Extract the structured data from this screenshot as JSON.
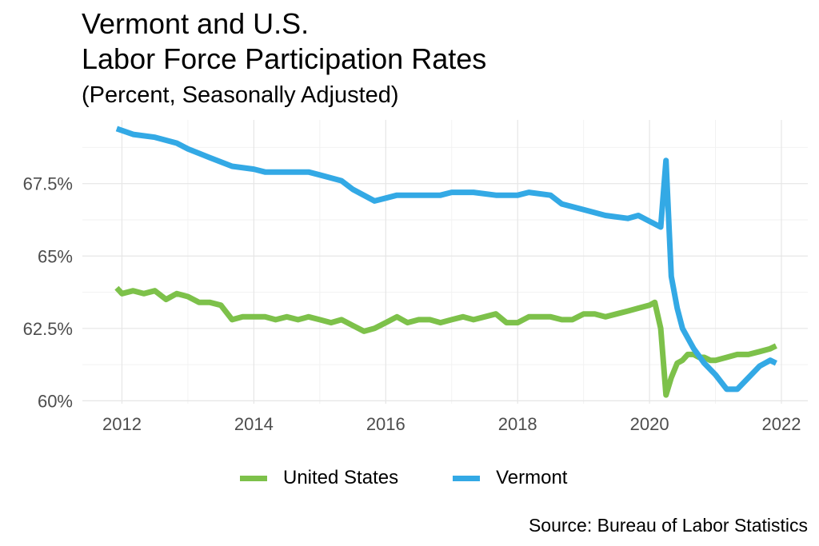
{
  "title_line1": "Vermont and U.S.",
  "title_line2": "Labor Force Participation Rates",
  "subtitle": "(Percent, Seasonally Adjusted)",
  "source": "Source: Bureau of Labor Statistics",
  "chart_data": {
    "type": "line",
    "title": "Vermont and U.S. Labor Force Participation Rates",
    "subtitle": "(Percent, Seasonally Adjusted)",
    "xlabel": "",
    "ylabel": "",
    "xlim": [
      2011.4,
      2022.4
    ],
    "ylim": [
      59.9,
      69.7
    ],
    "x_ticks": [
      2012,
      2014,
      2016,
      2018,
      2020,
      2022
    ],
    "x_tick_labels": [
      "2012",
      "2014",
      "2016",
      "2018",
      "2020",
      "2022"
    ],
    "y_ticks": [
      60,
      62.5,
      65,
      67.5
    ],
    "y_tick_labels": [
      "60%",
      "62.5%",
      "65%",
      "67.5%"
    ],
    "grid": true,
    "legend_position": "bottom",
    "series": [
      {
        "name": "United States",
        "color": "#7dc14a",
        "points": [
          [
            2011.92,
            63.9
          ],
          [
            2012.0,
            63.7
          ],
          [
            2012.17,
            63.8
          ],
          [
            2012.33,
            63.7
          ],
          [
            2012.5,
            63.8
          ],
          [
            2012.67,
            63.5
          ],
          [
            2012.83,
            63.7
          ],
          [
            2013.0,
            63.6
          ],
          [
            2013.17,
            63.4
          ],
          [
            2013.33,
            63.4
          ],
          [
            2013.5,
            63.3
          ],
          [
            2013.67,
            62.8
          ],
          [
            2013.83,
            62.9
          ],
          [
            2014.0,
            62.9
          ],
          [
            2014.17,
            62.9
          ],
          [
            2014.33,
            62.8
          ],
          [
            2014.5,
            62.9
          ],
          [
            2014.67,
            62.8
          ],
          [
            2014.83,
            62.9
          ],
          [
            2015.0,
            62.8
          ],
          [
            2015.17,
            62.7
          ],
          [
            2015.33,
            62.8
          ],
          [
            2015.5,
            62.6
          ],
          [
            2015.67,
            62.4
          ],
          [
            2015.83,
            62.5
          ],
          [
            2016.0,
            62.7
          ],
          [
            2016.17,
            62.9
          ],
          [
            2016.33,
            62.7
          ],
          [
            2016.5,
            62.8
          ],
          [
            2016.67,
            62.8
          ],
          [
            2016.83,
            62.7
          ],
          [
            2017.0,
            62.8
          ],
          [
            2017.17,
            62.9
          ],
          [
            2017.33,
            62.8
          ],
          [
            2017.5,
            62.9
          ],
          [
            2017.67,
            63.0
          ],
          [
            2017.83,
            62.7
          ],
          [
            2018.0,
            62.7
          ],
          [
            2018.17,
            62.9
          ],
          [
            2018.33,
            62.9
          ],
          [
            2018.5,
            62.9
          ],
          [
            2018.67,
            62.8
          ],
          [
            2018.83,
            62.8
          ],
          [
            2019.0,
            63.0
          ],
          [
            2019.17,
            63.0
          ],
          [
            2019.33,
            62.9
          ],
          [
            2019.5,
            63.0
          ],
          [
            2019.67,
            63.1
          ],
          [
            2019.83,
            63.2
          ],
          [
            2020.0,
            63.3
          ],
          [
            2020.08,
            63.4
          ],
          [
            2020.17,
            62.5
          ],
          [
            2020.25,
            60.2
          ],
          [
            2020.33,
            60.8
          ],
          [
            2020.42,
            61.3
          ],
          [
            2020.5,
            61.4
          ],
          [
            2020.58,
            61.6
          ],
          [
            2020.67,
            61.6
          ],
          [
            2020.75,
            61.5
          ],
          [
            2020.83,
            61.5
          ],
          [
            2020.92,
            61.4
          ],
          [
            2021.0,
            61.4
          ],
          [
            2021.17,
            61.5
          ],
          [
            2021.33,
            61.6
          ],
          [
            2021.5,
            61.6
          ],
          [
            2021.67,
            61.7
          ],
          [
            2021.83,
            61.8
          ],
          [
            2021.92,
            61.9
          ]
        ]
      },
      {
        "name": "Vermont",
        "color": "#33a9e5",
        "points": [
          [
            2011.92,
            69.4
          ],
          [
            2012.17,
            69.2
          ],
          [
            2012.5,
            69.1
          ],
          [
            2012.83,
            68.9
          ],
          [
            2013.0,
            68.7
          ],
          [
            2013.33,
            68.4
          ],
          [
            2013.67,
            68.1
          ],
          [
            2014.0,
            68.0
          ],
          [
            2014.17,
            67.9
          ],
          [
            2014.5,
            67.9
          ],
          [
            2014.83,
            67.9
          ],
          [
            2015.0,
            67.8
          ],
          [
            2015.33,
            67.6
          ],
          [
            2015.5,
            67.3
          ],
          [
            2015.83,
            66.9
          ],
          [
            2016.0,
            67.0
          ],
          [
            2016.17,
            67.1
          ],
          [
            2016.5,
            67.1
          ],
          [
            2016.83,
            67.1
          ],
          [
            2017.0,
            67.2
          ],
          [
            2017.33,
            67.2
          ],
          [
            2017.67,
            67.1
          ],
          [
            2018.0,
            67.1
          ],
          [
            2018.17,
            67.2
          ],
          [
            2018.5,
            67.1
          ],
          [
            2018.67,
            66.8
          ],
          [
            2019.0,
            66.6
          ],
          [
            2019.33,
            66.4
          ],
          [
            2019.67,
            66.3
          ],
          [
            2019.83,
            66.4
          ],
          [
            2020.0,
            66.2
          ],
          [
            2020.17,
            66.0
          ],
          [
            2020.25,
            68.3
          ],
          [
            2020.33,
            64.3
          ],
          [
            2020.42,
            63.2
          ],
          [
            2020.5,
            62.5
          ],
          [
            2020.67,
            61.8
          ],
          [
            2020.83,
            61.3
          ],
          [
            2021.0,
            60.9
          ],
          [
            2021.17,
            60.4
          ],
          [
            2021.33,
            60.4
          ],
          [
            2021.5,
            60.8
          ],
          [
            2021.67,
            61.2
          ],
          [
            2021.83,
            61.4
          ],
          [
            2021.92,
            61.3
          ]
        ]
      }
    ]
  }
}
